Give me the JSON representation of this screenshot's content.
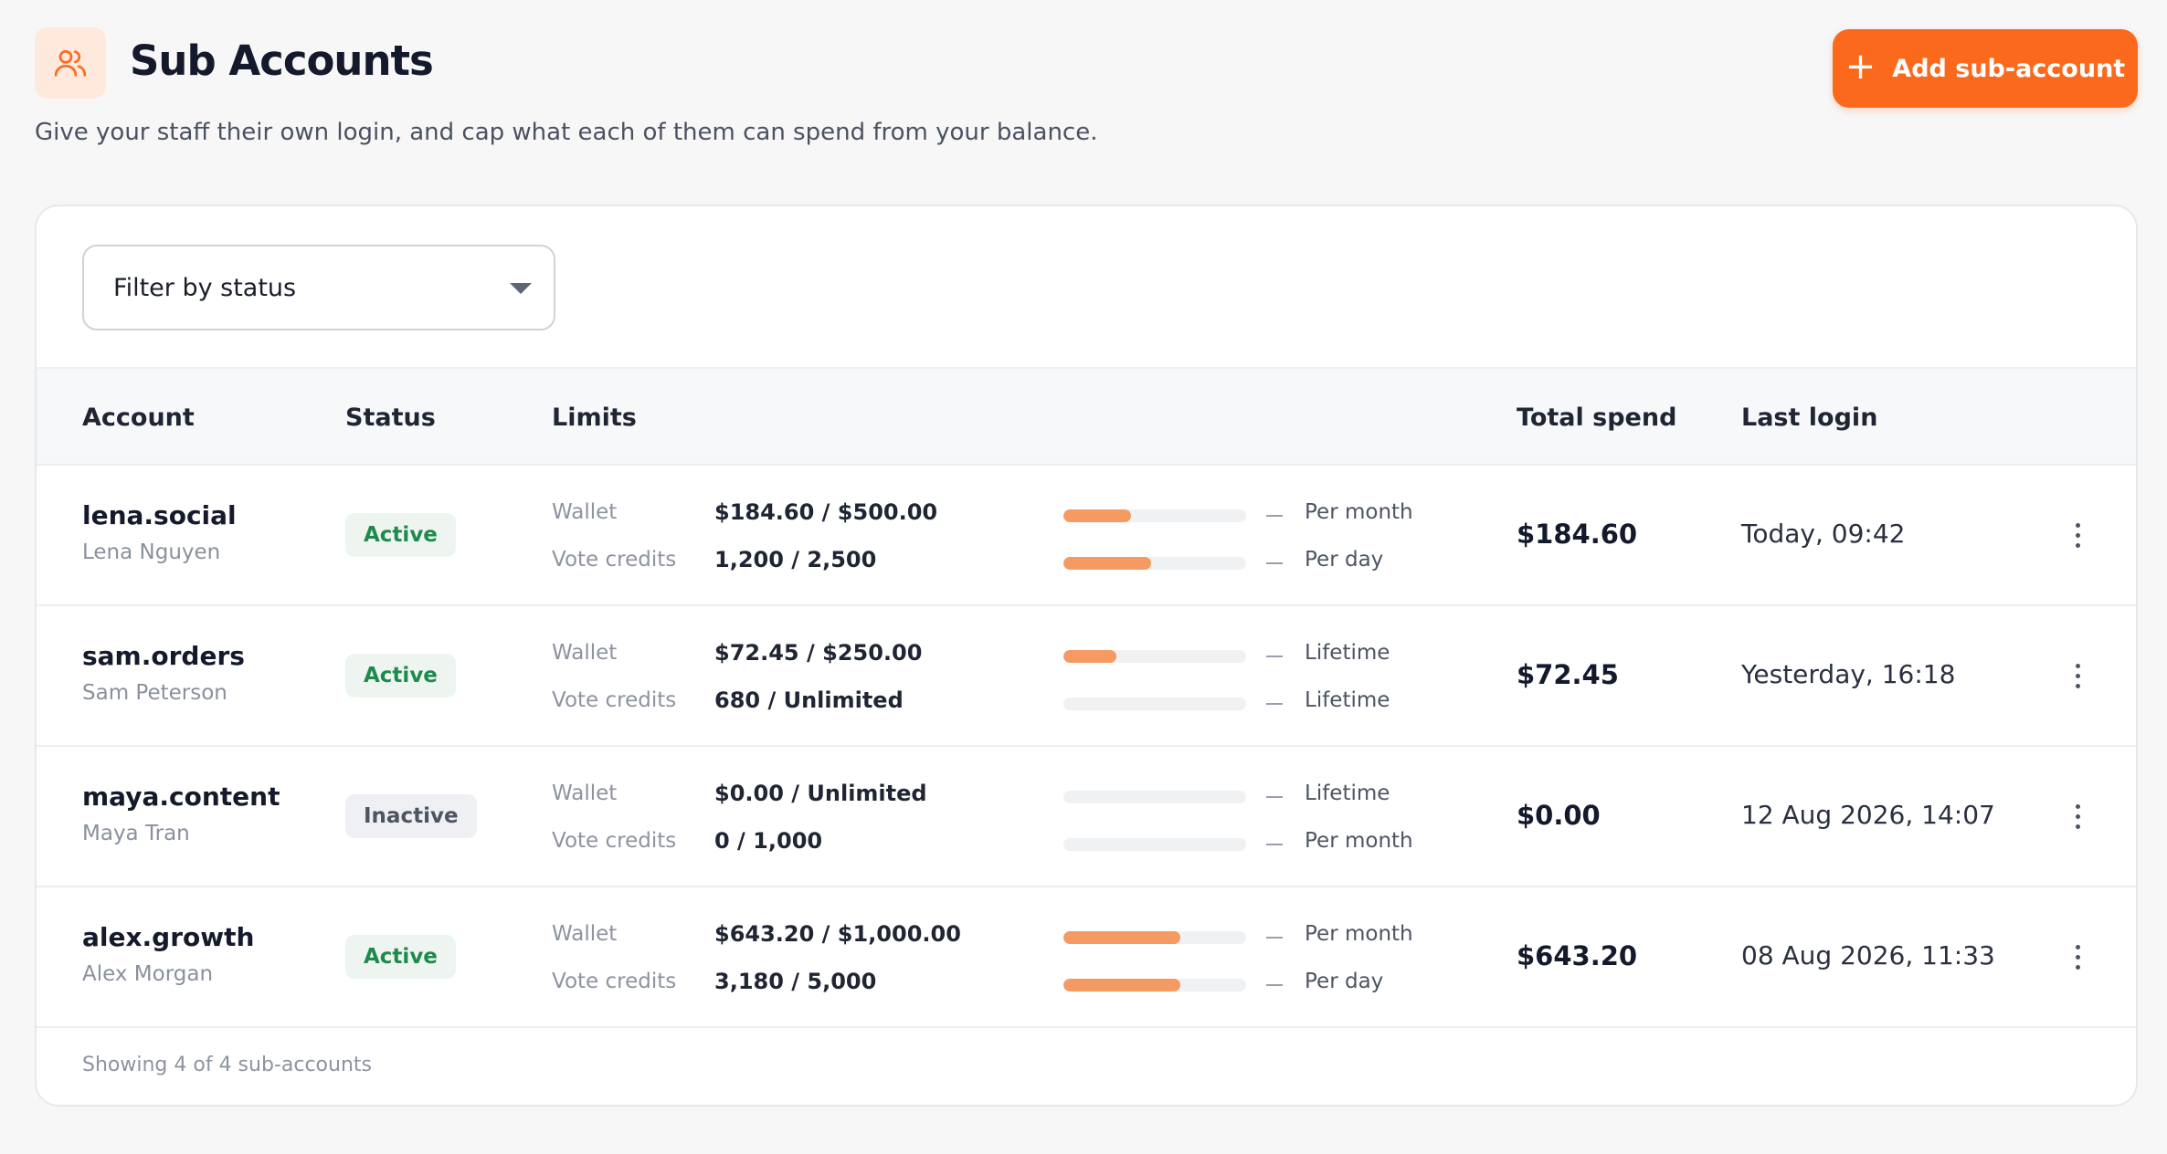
{
  "header": {
    "title": "Sub Accounts",
    "subtitle": "Give your staff their own login, and cap what each of them can spend from your balance.",
    "icon": "users-icon",
    "add_button_label": "Add sub-account",
    "accent_color": "#fb6a1c"
  },
  "filter": {
    "placeholder": "Filter by status"
  },
  "table": {
    "columns": [
      "Account",
      "Status",
      "Limits",
      "Total spend",
      "Last login"
    ],
    "rows": [
      {
        "username": "lena.social",
        "name": "Lena Nguyen",
        "status": "Active",
        "limits": [
          {
            "label": "Wallet",
            "value": "$184.60 / $500.00",
            "progress": 0.37,
            "period": "Per month"
          },
          {
            "label": "Vote credits",
            "value": "1,200 / 2,500",
            "progress": 0.48,
            "period": "Per day"
          }
        ],
        "total_spend": "$184.60",
        "last_login": "Today, 09:42"
      },
      {
        "username": "sam.orders",
        "name": "Sam Peterson",
        "status": "Active",
        "limits": [
          {
            "label": "Wallet",
            "value": "$72.45 / $250.00",
            "progress": 0.29,
            "period": "Lifetime"
          },
          {
            "label": "Vote credits",
            "value": "680 / Unlimited",
            "progress": 0,
            "period": "Lifetime"
          }
        ],
        "total_spend": "$72.45",
        "last_login": "Yesterday, 16:18"
      },
      {
        "username": "maya.content",
        "name": "Maya Tran",
        "status": "Inactive",
        "limits": [
          {
            "label": "Wallet",
            "value": "$0.00 / Unlimited",
            "progress": 0,
            "period": "Lifetime"
          },
          {
            "label": "Vote credits",
            "value": "0 / 1,000",
            "progress": 0,
            "period": "Per month"
          }
        ],
        "total_spend": "$0.00",
        "last_login": "12 Aug 2026, 14:07"
      },
      {
        "username": "alex.growth",
        "name": "Alex Morgan",
        "status": "Active",
        "limits": [
          {
            "label": "Wallet",
            "value": "$643.20 / $1,000.00",
            "progress": 0.64,
            "period": "Per month"
          },
          {
            "label": "Vote credits",
            "value": "3,180 / 5,000",
            "progress": 0.64,
            "period": "Per day"
          }
        ],
        "total_spend": "$643.20",
        "last_login": "08 Aug 2026, 11:33"
      }
    ],
    "footer": "Showing 4 of 4 sub-accounts"
  }
}
